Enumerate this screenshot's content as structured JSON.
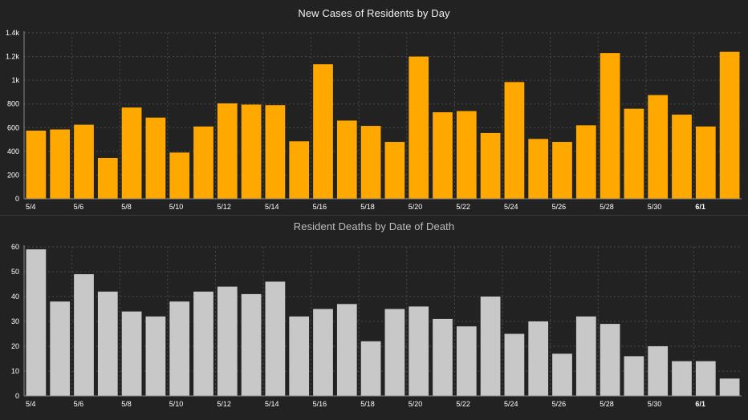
{
  "chart_data": [
    {
      "type": "bar",
      "title": "New Cases of Residents by Day",
      "xlabel": "",
      "ylabel": "",
      "categories": [
        "5/4",
        "5/5",
        "5/6",
        "5/7",
        "5/8",
        "5/9",
        "5/10",
        "5/11",
        "5/12",
        "5/13",
        "5/14",
        "5/15",
        "5/16",
        "5/17",
        "5/18",
        "5/19",
        "5/20",
        "5/21",
        "5/22",
        "5/23",
        "5/24",
        "5/25",
        "5/26",
        "5/27",
        "5/28",
        "5/29",
        "5/30",
        "5/31",
        "6/1",
        "6/2"
      ],
      "values": [
        575,
        585,
        625,
        345,
        770,
        685,
        390,
        610,
        805,
        795,
        790,
        485,
        1135,
        660,
        615,
        480,
        1200,
        730,
        740,
        555,
        985,
        505,
        480,
        620,
        1230,
        760,
        875,
        710,
        610,
        1240
      ],
      "ylim": [
        0,
        1400
      ],
      "yticks": [
        0,
        200,
        400,
        600,
        800,
        1000,
        1200,
        1400
      ],
      "ytick_labels": [
        "0",
        "200",
        "400",
        "600",
        "800",
        "1k",
        "1.2k",
        "1.4k"
      ],
      "xtick_labels": [
        "5/4",
        "5/6",
        "5/8",
        "5/10",
        "5/12",
        "5/14",
        "5/16",
        "5/18",
        "5/20",
        "5/22",
        "5/24",
        "5/26",
        "5/28",
        "5/30",
        "6/1"
      ],
      "bar_color": "#FFA800",
      "grid": true
    },
    {
      "type": "bar",
      "title": "Resident Deaths by Date of Death",
      "xlabel": "",
      "ylabel": "",
      "categories": [
        "5/4",
        "5/5",
        "5/6",
        "5/7",
        "5/8",
        "5/9",
        "5/10",
        "5/11",
        "5/12",
        "5/13",
        "5/14",
        "5/15",
        "5/16",
        "5/17",
        "5/18",
        "5/19",
        "5/20",
        "5/21",
        "5/22",
        "5/23",
        "5/24",
        "5/25",
        "5/26",
        "5/27",
        "5/28",
        "5/29",
        "5/30",
        "5/31",
        "6/1",
        "6/2"
      ],
      "values": [
        59,
        38,
        49,
        42,
        34,
        32,
        38,
        42,
        44,
        41,
        46,
        32,
        35,
        37,
        22,
        35,
        36,
        31,
        28,
        40,
        25,
        30,
        17,
        32,
        29,
        16,
        20,
        14,
        14,
        7
      ],
      "ylim": [
        0,
        60
      ],
      "yticks": [
        0,
        10,
        20,
        30,
        40,
        50,
        60
      ],
      "ytick_labels": [
        "0",
        "10",
        "20",
        "30",
        "40",
        "50",
        "60"
      ],
      "xtick_labels": [
        "5/4",
        "5/6",
        "5/8",
        "5/10",
        "5/12",
        "5/14",
        "5/16",
        "5/18",
        "5/20",
        "5/22",
        "5/24",
        "5/26",
        "5/28",
        "5/30",
        "6/1"
      ],
      "bar_color": "#C8C8C8",
      "grid": true
    }
  ]
}
